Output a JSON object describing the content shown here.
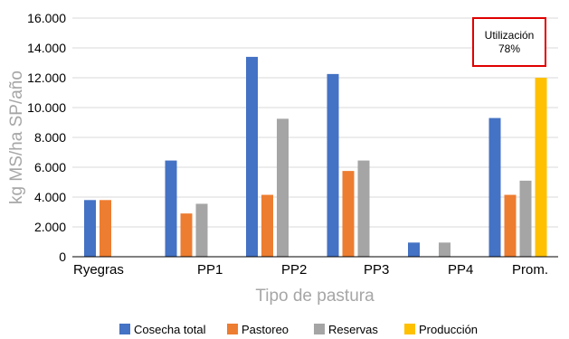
{
  "chart_data": {
    "type": "bar",
    "categories": [
      "Ryegras",
      "PP1",
      "PP2",
      "PP3",
      "PP4",
      "Prom."
    ],
    "series": [
      {
        "name": "Cosecha total",
        "color": "#4472c4",
        "values": [
          3800,
          6450,
          13400,
          12250,
          950,
          9300
        ]
      },
      {
        "name": "Pastoreo",
        "color": "#ed7d31",
        "values": [
          3800,
          2900,
          4150,
          5750,
          null,
          4150
        ]
      },
      {
        "name": "Reservas",
        "color": "#a5a5a5",
        "values": [
          null,
          3550,
          9250,
          6450,
          950,
          5100
        ]
      },
      {
        "name": "Producción",
        "color": "#ffc000",
        "values": [
          null,
          null,
          null,
          null,
          null,
          12000
        ]
      }
    ],
    "ylabel": "kg MS/ha SP/año",
    "xlabel": "Tipo de pastura",
    "ylim": [
      0,
      16000
    ],
    "yticks": [
      "0",
      "2.000",
      "4.000",
      "6.000",
      "8.000",
      "10.000",
      "12.000",
      "14.000",
      "16.000"
    ],
    "grid": true,
    "legend_position": "bottom",
    "annotation": {
      "line1": "Utilización",
      "line2": "78%",
      "border_color": "#e00000"
    }
  }
}
